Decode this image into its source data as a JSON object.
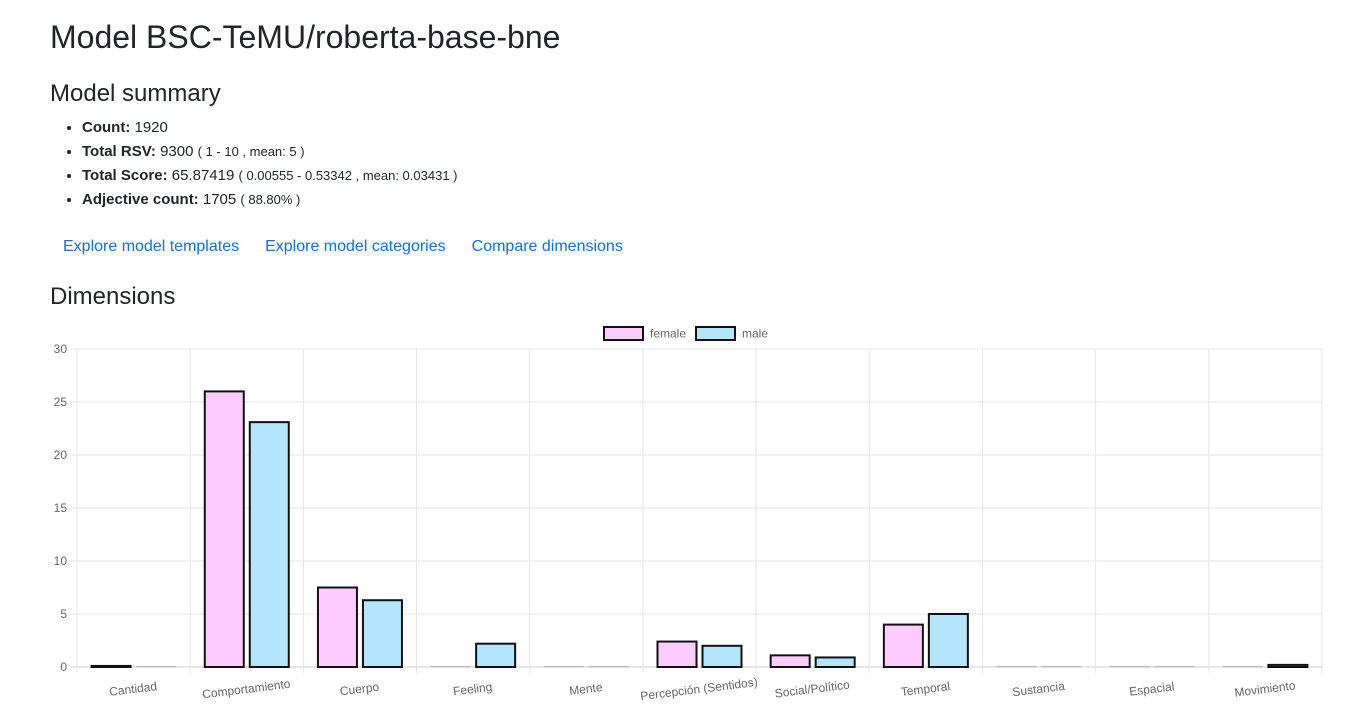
{
  "header": {
    "title": "Model BSC-TeMU/roberta-base-bne"
  },
  "summary": {
    "title": "Model summary",
    "items": [
      {
        "label": "Count:",
        "value": "1920",
        "detail": ""
      },
      {
        "label": "Total RSV:",
        "value": "9300",
        "detail": "( 1 - 10 , mean: 5 )"
      },
      {
        "label": "Total Score:",
        "value": "65.87419",
        "detail": "( 0.00555 - 0.53342 , mean: 0.03431 )"
      },
      {
        "label": "Adjective count:",
        "value": "1705",
        "detail": "( 88.80% )"
      }
    ]
  },
  "links": {
    "templates": "Explore model templates",
    "categories": "Explore model categories",
    "compare": "Compare dimensions"
  },
  "dimensions": {
    "title": "Dimensions"
  },
  "colors": {
    "female_fill": "#fccdfc",
    "male_fill": "#b3e5fc",
    "bar_border": "#111111",
    "grid": "#e5e5e5",
    "tick_text": "#666666"
  },
  "chart_data": {
    "type": "bar",
    "categories": [
      "Cantidad",
      "Comportamiento",
      "Cuerpo",
      "Feeling",
      "Mente",
      "Percepción (Sentidos)",
      "Social/Político",
      "Temporal",
      "Sustancia",
      "Espacial",
      "Movimiento"
    ],
    "series": [
      {
        "name": "female",
        "values": [
          0.1,
          26,
          7.5,
          0,
          0,
          2.4,
          1.1,
          4.0,
          0,
          0,
          0
        ]
      },
      {
        "name": "male",
        "values": [
          0,
          23.1,
          6.3,
          2.2,
          0,
          2.0,
          0.9,
          5.0,
          0,
          0,
          0.2
        ]
      }
    ],
    "ylim": [
      0,
      30
    ],
    "yticks": [
      "0",
      "5",
      "10",
      "15",
      "20",
      "25",
      "30"
    ],
    "grid": true,
    "legend": "top-center"
  }
}
